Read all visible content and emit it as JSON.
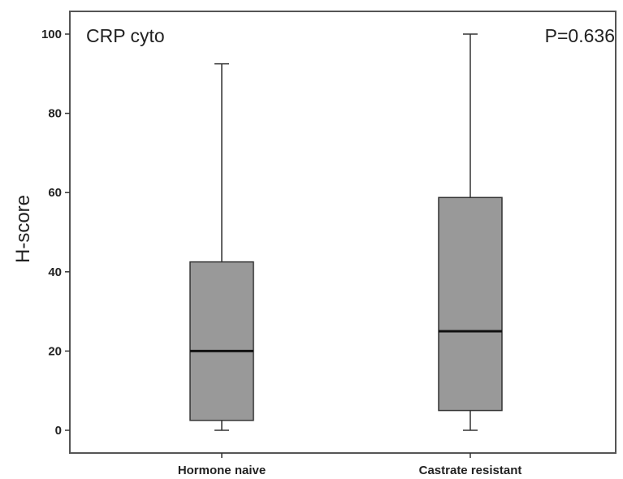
{
  "chart_data": {
    "type": "boxplot",
    "title": "CRP cyto",
    "annotation": "P=0.636",
    "xlabel": "",
    "ylabel": "H-score",
    "ylim": [
      -5,
      106
    ],
    "yticks": [
      0,
      20,
      40,
      60,
      80,
      100
    ],
    "grid": false,
    "box_color": "#999999",
    "categories": [
      "Hormone naive",
      "Castrate resistant"
    ],
    "boxes": [
      {
        "category": "Hormone naive",
        "min": 0,
        "q1": 2.5,
        "median": 20,
        "q3": 42.5,
        "max": 92.5
      },
      {
        "category": "Castrate resistant",
        "min": 0,
        "q1": 5,
        "median": 25,
        "q3": 58.75,
        "max": 100
      }
    ]
  }
}
